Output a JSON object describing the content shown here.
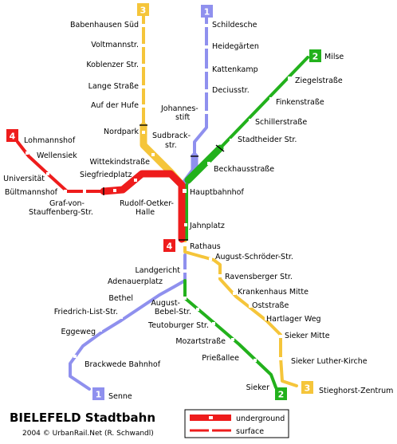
{
  "title": "BIELEFELD Stadtbahn",
  "credit": "2004 © UrbanRail.Net (R. Schwandl)",
  "legend": {
    "underground": "underground",
    "surface": "surface"
  },
  "lines": [
    {
      "number": "1",
      "color": "#8f90ee",
      "from": "Schildesche",
      "to": "Senne"
    },
    {
      "number": "2",
      "color": "#22b11c",
      "from": "Milse",
      "to": "Sieker"
    },
    {
      "number": "3",
      "color": "#f5c53a",
      "from": "Babenhausen Süd",
      "to": "Stieghorst-Zentrum"
    },
    {
      "number": "4",
      "color": "#ee1c1c",
      "from": "Lohmannshof",
      "to": "Rathaus"
    }
  ],
  "badges": {
    "line1_top": "1",
    "line1_bottom": "1",
    "line2_top": "2",
    "line2_bottom": "2",
    "line3_top": "3",
    "line3_bottom": "3",
    "line4_left": "4",
    "line4_center": "4"
  },
  "stations": {
    "babenhausen_sued": "Babenhausen Süd",
    "voltmannstr": "Voltmannstr.",
    "koblenzer_str": "Koblenzer Str.",
    "lange_strasse": "Lange Straße",
    "auf_der_hufe": "Auf der Hufe",
    "nordpark": "Nordpark",
    "sudbrackstr_1": "Sudbrack-",
    "sudbrackstr_2": "str.",
    "wittekindstrasse": "Wittekindstraße",
    "siegfriedplatz": "Siegfriedplatz",
    "rudolf_oetker_1": "Rudolf-Oetker-",
    "rudolf_oetker_2": "Halle",
    "graf_1": "Graf-von-",
    "graf_2": "Stauffenberg-Str.",
    "bueltmannshof": "Bültmannshof",
    "universitaet": "Universität",
    "wellensiek": "Wellensiek",
    "lohmannshof": "Lohmannshof",
    "schildesche": "Schildesche",
    "heidegaerten": "Heidegärten",
    "kattenkamp": "Kattenkamp",
    "deciusstr": "Deciusstr.",
    "johannesstift_1": "Johannes-",
    "johannesstift_2": "stift",
    "milse": "Milse",
    "ziegelstrasse": "Ziegelstraße",
    "finkenstrasse": "Finkenstraße",
    "schillerstrasse": "Schillerstraße",
    "stadtheider_str": "Stadtheider Str.",
    "beckhausstrasse": "Beckhausstraße",
    "hauptbahnhof": "Hauptbahnhof",
    "jahnplatz": "Jahnplatz",
    "rathaus": "Rathaus",
    "august_schroeder": "August-Schröder-Str.",
    "ravensberger": "Ravensberger Str.",
    "krankenhaus_mitte": "Krankenhaus Mitte",
    "oststrasse": "Oststraße",
    "hartlager_weg": "Hartlager Weg",
    "sieker_mitte": "Sieker Mitte",
    "sieker_luther": "Sieker Luther-Kirche",
    "stieghorst": "Stieghorst-Zentrum",
    "landgericht": "Landgericht",
    "adenauerplatz": "Adenauerplatz",
    "bethel": "Bethel",
    "friedrich_list": "Friedrich-List-Str.",
    "eggeweg": "Eggeweg",
    "brackwede": "Brackwede Bahnhof",
    "senne": "Senne",
    "august_bebel_1": "August-",
    "august_bebel_2": "Bebel-Str.",
    "teutoburger": "Teutoburger Str.",
    "mozartstrasse": "Mozartstraße",
    "priessallee": "Prießallee",
    "sieker": "Sieker"
  }
}
